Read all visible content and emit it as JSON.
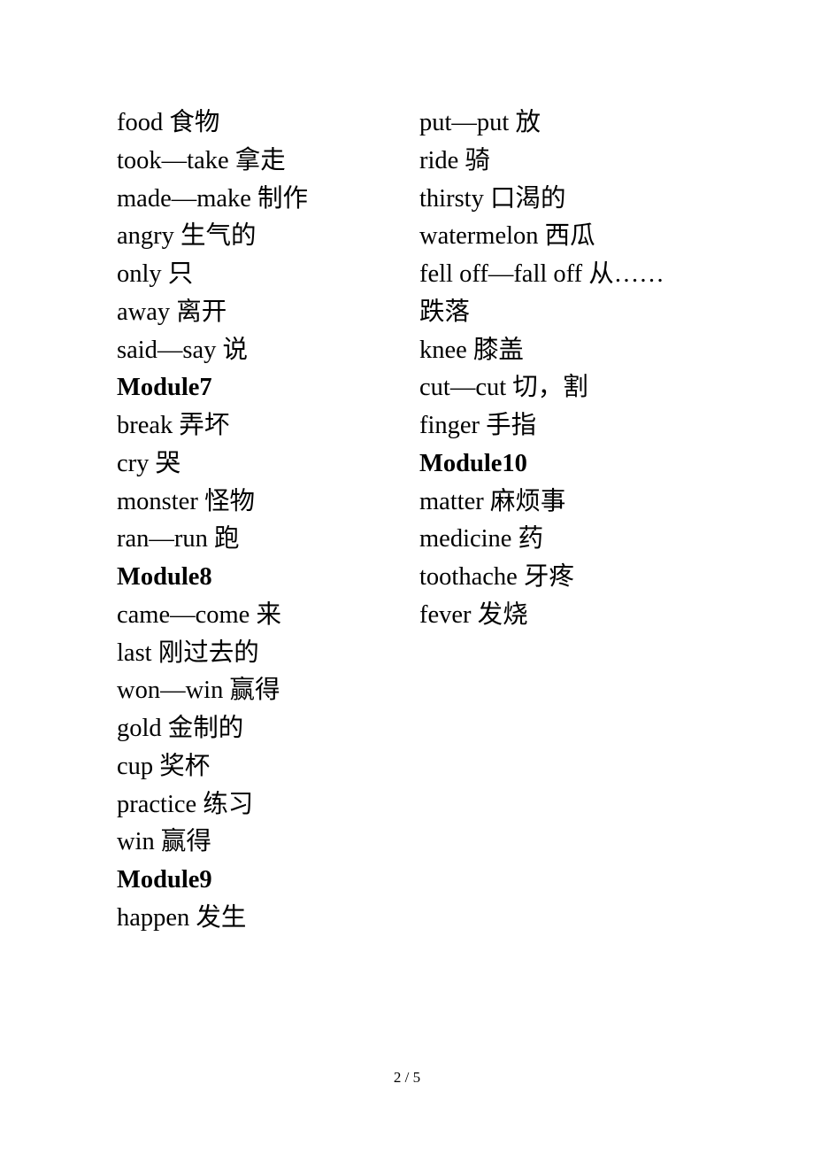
{
  "page": {
    "number": "2 / 5",
    "background_color": "#ffffff",
    "text_color": "#000000",
    "font_family": "Times New Roman, SimSun, serif",
    "body_fontsize": 28.5,
    "line_height": 1.5,
    "page_num_fontsize": 17
  },
  "left_column": [
    {
      "type": "entry",
      "text": "food 食物"
    },
    {
      "type": "entry",
      "text": "took—take 拿走"
    },
    {
      "type": "entry",
      "text": "made—make 制作"
    },
    {
      "type": "entry",
      "text": "angry 生气的"
    },
    {
      "type": "entry",
      "text": "only 只"
    },
    {
      "type": "entry",
      "text": "away 离开"
    },
    {
      "type": "entry",
      "text": "said—say  说"
    },
    {
      "type": "heading",
      "text": "Module7"
    },
    {
      "type": "entry",
      "text": "break 弄坏"
    },
    {
      "type": "entry",
      "text": "cry 哭"
    },
    {
      "type": "entry",
      "text": "monster 怪物"
    },
    {
      "type": "entry",
      "text": "ran—run  跑"
    },
    {
      "type": "heading",
      "text": "Module8"
    },
    {
      "type": "entry",
      "text": "came—come 来"
    },
    {
      "type": "entry",
      "text": "last 刚过去的"
    },
    {
      "type": "entry",
      "text": "won—win 赢得"
    },
    {
      "type": "entry",
      "text": "gold 金制的"
    },
    {
      "type": "entry",
      "text": "cup 奖杯"
    },
    {
      "type": "entry",
      "text": "practice 练习"
    },
    {
      "type": "entry",
      "text": "win 赢得"
    },
    {
      "type": "heading",
      "text": "Module9"
    },
    {
      "type": "entry",
      "text": "happen 发生"
    }
  ],
  "right_column": [
    {
      "type": "entry",
      "text": "put—put 放"
    },
    {
      "type": "entry",
      "text": "ride 骑"
    },
    {
      "type": "entry",
      "text": "thirsty 口渴的"
    },
    {
      "type": "entry",
      "text": "watermelon 西瓜"
    },
    {
      "type": "entry",
      "text": "fell off—fall off 从……"
    },
    {
      "type": "entry",
      "text": "跌落"
    },
    {
      "type": "entry",
      "text": "knee 膝盖"
    },
    {
      "type": "entry",
      "text": "cut—cut 切，割"
    },
    {
      "type": "entry",
      "text": "finger 手指"
    },
    {
      "type": "heading",
      "text": "Module10"
    },
    {
      "type": "entry",
      "text": "matter 麻烦事"
    },
    {
      "type": "entry",
      "text": "medicine 药"
    },
    {
      "type": "entry",
      "text": "toothache 牙疼"
    },
    {
      "type": "entry",
      "text": "fever 发烧"
    }
  ]
}
